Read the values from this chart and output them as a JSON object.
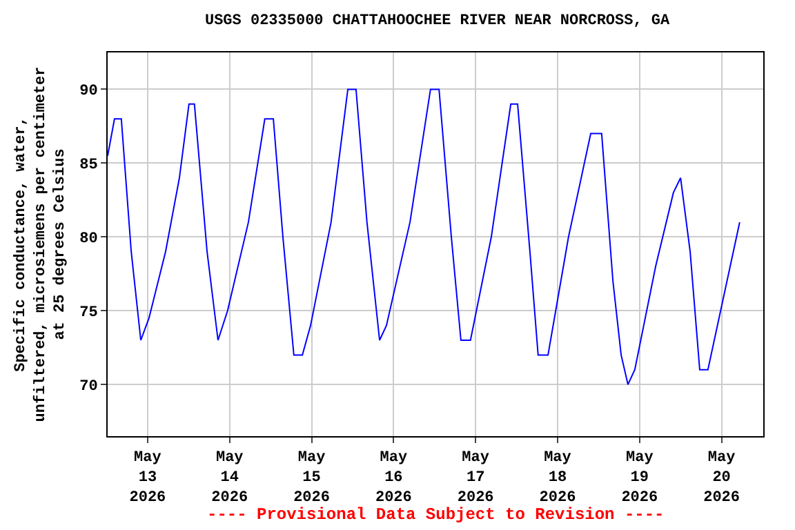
{
  "chart_data": {
    "type": "line",
    "title": "USGS 02335000 CHATTAHOOCHEE RIVER NEAR NORCROSS, GA",
    "ylabel": "Specific conductance, water,\nunfiltered, microsiemens per centimeter\nat 25 degrees Celsius",
    "annotations": [
      "---- Provisional Data Subject to Revision ----"
    ],
    "x": [
      "2026-05-12T12:18",
      "2026-05-12T14:18",
      "2026-05-12T16:18",
      "2026-05-12T19:12",
      "2026-05-12T22:00",
      "2026-05-13T00:24",
      "2026-05-13T05:15",
      "2026-05-13T09:18",
      "2026-05-13T12:06",
      "2026-05-13T13:42",
      "2026-05-13T17:24",
      "2026-05-13T20:36",
      "2026-05-13T23:24",
      "2026-05-14T05:30",
      "2026-05-14T10:18",
      "2026-05-14T12:48",
      "2026-05-14T15:36",
      "2026-05-14T18:48",
      "2026-05-14T21:18",
      "2026-05-14T23:42",
      "2026-05-15T05:42",
      "2026-05-15T10:36",
      "2026-05-15T13:00",
      "2026-05-15T16:12",
      "2026-05-15T19:54",
      "2026-05-15T21:54",
      "2026-05-16T04:48",
      "2026-05-16T10:48",
      "2026-05-16T13:18",
      "2026-05-16T16:54",
      "2026-05-16T19:42",
      "2026-05-16T22:30",
      "2026-05-17T04:36",
      "2026-05-17T10:18",
      "2026-05-17T12:18",
      "2026-05-17T15:54",
      "2026-05-17T18:18",
      "2026-05-17T21:12",
      "2026-05-18T03:12",
      "2026-05-18T09:42",
      "2026-05-18T12:54",
      "2026-05-18T16:12",
      "2026-05-18T18:36",
      "2026-05-18T20:36",
      "2026-05-18T22:36",
      "2026-05-19T04:42",
      "2026-05-19T09:54",
      "2026-05-19T12:00",
      "2026-05-19T14:48",
      "2026-05-19T17:36",
      "2026-05-19T20:00",
      "2026-05-20T05:18"
    ],
    "series": [
      {
        "color": "#0000ff",
        "values": [
          85.5,
          88,
          88,
          79,
          73,
          74.5,
          79,
          84,
          89,
          89,
          79,
          73,
          75,
          81,
          88,
          88,
          80,
          72,
          72,
          74,
          81,
          90,
          90,
          81,
          73,
          74,
          81,
          90,
          90,
          80,
          73,
          73,
          80,
          89,
          89,
          79,
          72,
          72,
          80,
          87,
          87,
          77,
          72,
          70,
          71,
          78,
          83,
          84,
          79,
          71,
          71,
          81
        ]
      }
    ],
    "xlim": [
      "2026-05-12T12:18",
      "2026-05-20T12:12"
    ],
    "xticks": [
      {
        "value": "2026-05-13",
        "label": "May\n13\n2026"
      },
      {
        "value": "2026-05-14",
        "label": "May\n14\n2026"
      },
      {
        "value": "2026-05-15",
        "label": "May\n15\n2026"
      },
      {
        "value": "2026-05-16",
        "label": "May\n16\n2026"
      },
      {
        "value": "2026-05-17",
        "label": "May\n17\n2026"
      },
      {
        "value": "2026-05-18",
        "label": "May\n18\n2026"
      },
      {
        "value": "2026-05-19",
        "label": "May\n19\n2026"
      },
      {
        "value": "2026-05-20",
        "label": "May\n20\n2026"
      }
    ],
    "ylim": [
      66.5,
      92.5
    ],
    "yticks": [
      70,
      75,
      80,
      85,
      90
    ],
    "grid": true
  }
}
